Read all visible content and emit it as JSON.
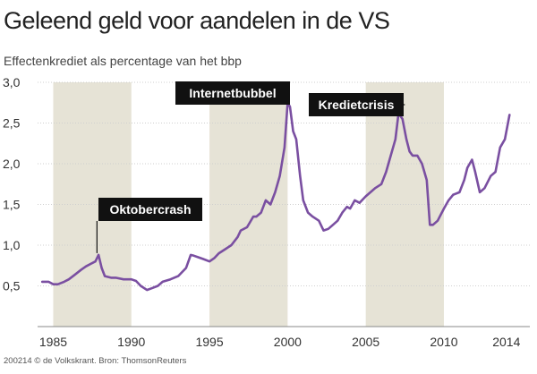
{
  "chart_data": {
    "type": "line",
    "title": "Geleend geld voor aandelen in de VS",
    "subtitle": "Effectenkrediet als percentage van het bbp",
    "xlabel": "",
    "ylabel": "",
    "xlim": [
      1984.0,
      2015.5
    ],
    "ylim": [
      0.0,
      3.0
    ],
    "x_ticks": [
      "1985",
      "1990",
      "1995",
      "2000",
      "2005",
      "2010",
      "2014"
    ],
    "y_ticks": [
      "0,5",
      "1,0",
      "1,5",
      "2,0",
      "2,5",
      "3,0"
    ],
    "grid": "horizontal",
    "line_color": "#7a4fa1",
    "band_color": "#e6e3d6",
    "shaded_periods": [
      [
        1985,
        1990
      ],
      [
        1995,
        2000
      ],
      [
        2005,
        2010
      ]
    ],
    "annotations": [
      {
        "label": "Oktobercrash",
        "x": 1987.8,
        "y": 0.88
      },
      {
        "label": "Internetbubbel",
        "x": 2000.0,
        "y": 2.75
      },
      {
        "label": "Kredietcrisis",
        "x": 2007.5,
        "y": 2.6
      }
    ],
    "series": [
      {
        "x": [
          1984.3,
          1984.7,
          1985.0,
          1985.3,
          1985.7,
          1986.0,
          1986.4,
          1986.8,
          1987.1,
          1987.4,
          1987.7,
          1987.9,
          1988.1,
          1988.3,
          1988.7,
          1989.0,
          1989.5,
          1990.0,
          1990.3,
          1990.6,
          1991.0,
          1991.3,
          1991.7,
          1992.0,
          1992.5,
          1993.0,
          1993.5,
          1993.8,
          1994.0,
          1994.3,
          1994.6,
          1995.0,
          1995.3,
          1995.6,
          1996.0,
          1996.4,
          1996.8,
          1997.0,
          1997.4,
          1997.8,
          1998.0,
          1998.3,
          1998.6,
          1998.9,
          1999.2,
          1999.5,
          1999.8,
          2000.0,
          2000.15,
          2000.35,
          2000.55,
          2000.8,
          2001.0,
          2001.3,
          2001.6,
          2002.0,
          2002.3,
          2002.6,
          2002.9,
          2003.2,
          2003.5,
          2003.8,
          2004.0,
          2004.3,
          2004.6,
          2005.0,
          2005.3,
          2005.6,
          2006.0,
          2006.3,
          2006.6,
          2006.9,
          2007.1,
          2007.35,
          2007.6,
          2007.8,
          2008.0,
          2008.3,
          2008.6,
          2008.9,
          2009.1,
          2009.3,
          2009.6,
          2010.0,
          2010.3,
          2010.6,
          2011.0,
          2011.3,
          2011.5,
          2011.8,
          2012.0,
          2012.3,
          2012.6,
          2013.0,
          2013.3,
          2013.6,
          2013.9,
          2014.2
        ],
        "y": [
          0.55,
          0.55,
          0.52,
          0.52,
          0.55,
          0.58,
          0.64,
          0.7,
          0.74,
          0.77,
          0.8,
          0.88,
          0.72,
          0.62,
          0.6,
          0.6,
          0.58,
          0.58,
          0.56,
          0.5,
          0.45,
          0.47,
          0.5,
          0.55,
          0.58,
          0.62,
          0.72,
          0.88,
          0.87,
          0.85,
          0.83,
          0.8,
          0.84,
          0.9,
          0.95,
          1.0,
          1.1,
          1.18,
          1.22,
          1.35,
          1.35,
          1.4,
          1.55,
          1.5,
          1.65,
          1.85,
          2.2,
          2.75,
          2.7,
          2.4,
          2.3,
          1.85,
          1.55,
          1.4,
          1.35,
          1.3,
          1.18,
          1.2,
          1.25,
          1.3,
          1.4,
          1.47,
          1.45,
          1.55,
          1.52,
          1.6,
          1.65,
          1.7,
          1.75,
          1.9,
          2.1,
          2.3,
          2.62,
          2.55,
          2.3,
          2.15,
          2.1,
          2.1,
          2.0,
          1.8,
          1.25,
          1.25,
          1.3,
          1.45,
          1.55,
          1.62,
          1.65,
          1.8,
          1.95,
          2.05,
          1.9,
          1.65,
          1.7,
          1.85,
          1.9,
          2.2,
          2.3,
          2.6
        ]
      }
    ]
  },
  "footer": "200214 © de Volkskrant. Bron: ThomsonReuters"
}
